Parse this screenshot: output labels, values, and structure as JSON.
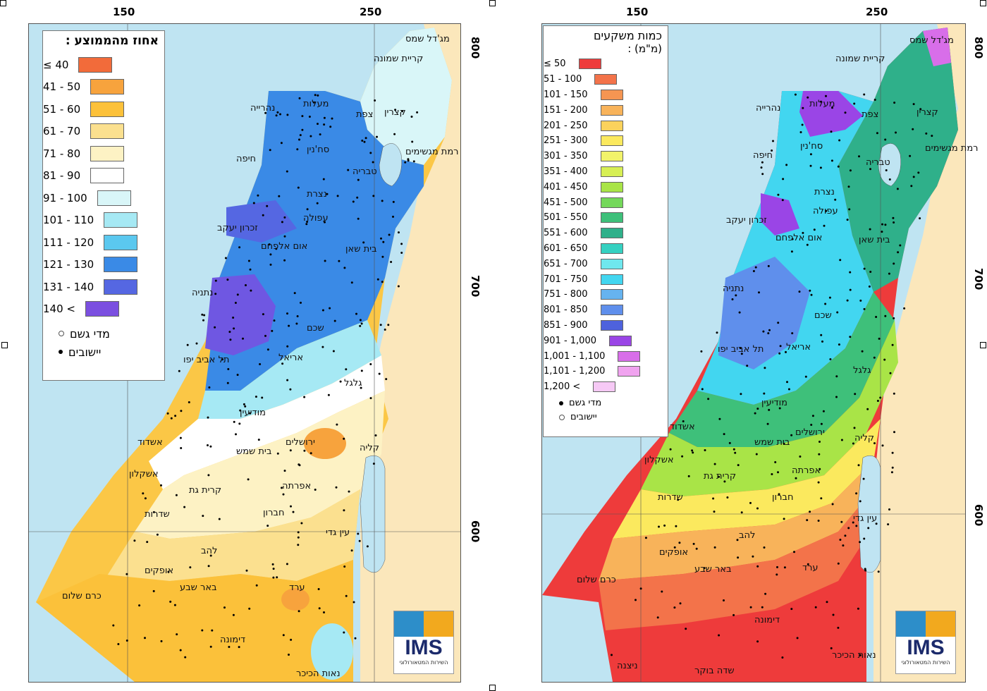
{
  "left_map": {
    "legend_title": "אחוז מהממוצע :",
    "legend_items": [
      {
        "label": "≤ 40",
        "color": "#f26b3a"
      },
      {
        "label": "41 - 50",
        "color": "#f7a33d"
      },
      {
        "label": "51 - 60",
        "color": "#fcc13a"
      },
      {
        "label": "61 - 70",
        "color": "#fbe08f"
      },
      {
        "label": "71 - 80",
        "color": "#fdf2c4"
      },
      {
        "label": "81 - 90",
        "color": "#ffffff"
      },
      {
        "label": "91 - 100",
        "color": "#d9f6f8"
      },
      {
        "label": "101 - 110",
        "color": "#a6e9f4"
      },
      {
        "label": "111 - 120",
        "color": "#5bc8ef"
      },
      {
        "label": "121 - 130",
        "color": "#3a8ae6"
      },
      {
        "label": "131 - 140",
        "color": "#5567e2"
      },
      {
        "label": "140 <",
        "color": "#7b4fe0"
      }
    ],
    "symbol_items": [
      {
        "label": "מדי גשם",
        "symbol": "circle"
      },
      {
        "label": "יישובים",
        "symbol": "dot"
      }
    ],
    "x_ticks": [
      "150",
      "250"
    ],
    "y_ticks": [
      "800",
      "700",
      "600"
    ],
    "cities": [
      {
        "name": "מג'דל שמס"
      },
      {
        "name": "קריית שמונה"
      },
      {
        "name": "מעלות"
      },
      {
        "name": "נהרייה"
      },
      {
        "name": "קצרין"
      },
      {
        "name": "צפת"
      },
      {
        "name": "רמת מגשימים"
      },
      {
        "name": "סח'נין"
      },
      {
        "name": "חיפה"
      },
      {
        "name": "טבריה"
      },
      {
        "name": "נצרת"
      },
      {
        "name": "עפולה"
      },
      {
        "name": "זכרון יעקב"
      },
      {
        "name": "אום אלפחם"
      },
      {
        "name": "בית שאן"
      },
      {
        "name": "נתניה"
      },
      {
        "name": "שכם"
      },
      {
        "name": "אריאל"
      },
      {
        "name": "תל אביב יפו"
      },
      {
        "name": "גלגל"
      },
      {
        "name": "מודיעין"
      },
      {
        "name": "ירושלים"
      },
      {
        "name": "קליה"
      },
      {
        "name": "אשדוד"
      },
      {
        "name": "בית שמש"
      },
      {
        "name": "אשקלון"
      },
      {
        "name": "קרית גת"
      },
      {
        "name": "אפרתה"
      },
      {
        "name": "שדרות"
      },
      {
        "name": "חברון"
      },
      {
        "name": "עין גדי"
      },
      {
        "name": "להב"
      },
      {
        "name": "אופקים"
      },
      {
        "name": "באר שבע"
      },
      {
        "name": "ערד"
      },
      {
        "name": "כרם שלום"
      },
      {
        "name": "דימונה"
      },
      {
        "name": "נאות הכיכר"
      }
    ]
  },
  "right_map": {
    "legend_title": "כמות משקעים",
    "legend_subtitle": "(מ\"מ) :",
    "legend_items": [
      {
        "label": "≤ 50",
        "color": "#ee3b3b"
      },
      {
        "label": "51 - 100",
        "color": "#f3734a"
      },
      {
        "label": "101 - 150",
        "color": "#f59552"
      },
      {
        "label": "151 - 200",
        "color": "#f8b35a"
      },
      {
        "label": "201 - 250",
        "color": "#fbd25c"
      },
      {
        "label": "251 - 300",
        "color": "#fbe95e"
      },
      {
        "label": "301 - 350",
        "color": "#f2f36a"
      },
      {
        "label": "351 - 400",
        "color": "#d7ef54"
      },
      {
        "label": "401 - 450",
        "color": "#a9e447"
      },
      {
        "label": "451 - 500",
        "color": "#74d85a"
      },
      {
        "label": "501 - 550",
        "color": "#3ec07a"
      },
      {
        "label": "551 - 600",
        "color": "#2fb08a"
      },
      {
        "label": "601 - 650",
        "color": "#35d1c1"
      },
      {
        "label": "651 - 700",
        "color": "#6fe7ee"
      },
      {
        "label": "701 - 750",
        "color": "#42d6f0"
      },
      {
        "label": "751 - 800",
        "color": "#66b3ef"
      },
      {
        "label": "801 - 850",
        "color": "#5f8fec"
      },
      {
        "label": "851 - 900",
        "color": "#4e62dd"
      },
      {
        "label": "901 - 1,000",
        "color": "#9a45e6"
      },
      {
        "label": "1,001 - 1,100",
        "color": "#d86ee9"
      },
      {
        "label": "1,101 - 1,200",
        "color": "#f0a3ef"
      },
      {
        "label": "1,200 <",
        "color": "#f6c9f5"
      }
    ],
    "symbol_items": [
      {
        "label": "מדי גשם",
        "symbol": "dot"
      },
      {
        "label": "יישובים",
        "symbol": "circle"
      }
    ],
    "x_ticks": [
      "150",
      "250"
    ],
    "y_ticks": [
      "800",
      "700",
      "600"
    ],
    "cities": [
      {
        "name": "מג'דל שמס"
      },
      {
        "name": "קריית שמונה"
      },
      {
        "name": "מעלות"
      },
      {
        "name": "נהרייה"
      },
      {
        "name": "קצרין"
      },
      {
        "name": "צפת"
      },
      {
        "name": "רמת מגשימים"
      },
      {
        "name": "סח'נין"
      },
      {
        "name": "חיפה"
      },
      {
        "name": "טבריה"
      },
      {
        "name": "נצרת"
      },
      {
        "name": "עפולה"
      },
      {
        "name": "זכרון יעקב"
      },
      {
        "name": "אום אלפחם"
      },
      {
        "name": "בית שאן"
      },
      {
        "name": "נתניה"
      },
      {
        "name": "שכם"
      },
      {
        "name": "אריאל"
      },
      {
        "name": "תל אביב יפו"
      },
      {
        "name": "גלגל"
      },
      {
        "name": "מודיעין"
      },
      {
        "name": "ירושלים"
      },
      {
        "name": "קליה"
      },
      {
        "name": "אשדוד"
      },
      {
        "name": "בית שמש"
      },
      {
        "name": "אשקלון"
      },
      {
        "name": "קרית גת"
      },
      {
        "name": "אפרתה"
      },
      {
        "name": "שדרות"
      },
      {
        "name": "חברון"
      },
      {
        "name": "עין גדי"
      },
      {
        "name": "להב"
      },
      {
        "name": "אופקים"
      },
      {
        "name": "באר שבע"
      },
      {
        "name": "ערד"
      },
      {
        "name": "כרם שלום"
      },
      {
        "name": "דימונה"
      },
      {
        "name": "נאות הכיכר"
      },
      {
        "name": "ניצנה"
      },
      {
        "name": "שדה בוקר"
      }
    ]
  },
  "logo": {
    "brand": "IMS",
    "subtitle": "השירות המטאורולוגי"
  },
  "colors": {
    "sea": "#bfe4f2",
    "land": "#fbe7bb",
    "frame": "#555555"
  }
}
